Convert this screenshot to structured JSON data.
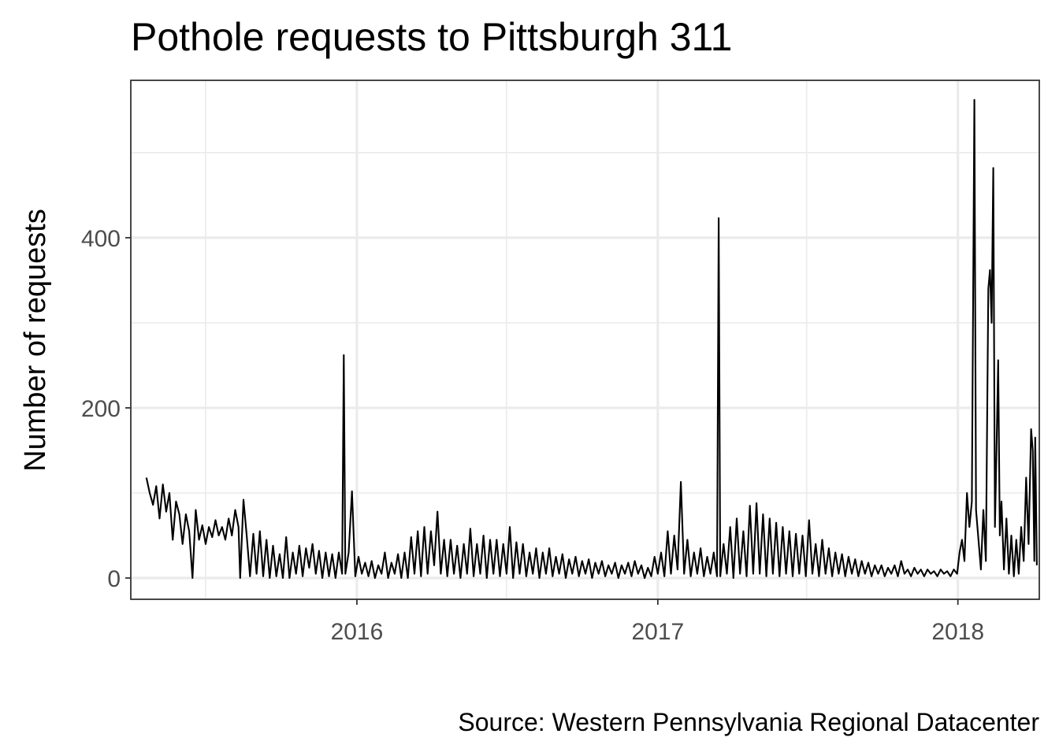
{
  "chart_data": {
    "type": "line",
    "title": "Pothole requests to Pittsburgh 311",
    "xlabel": "",
    "ylabel": "Number of requests",
    "caption": "Source: Western Pennsylvania Regional Datacenter",
    "x_axis": {
      "type": "date",
      "range": [
        "2015-04-01",
        "2018-04-10"
      ],
      "ticks": [
        "2016",
        "2017",
        "2018"
      ]
    },
    "y_axis": {
      "range": [
        -25,
        585
      ],
      "ticks": [
        0,
        200,
        400
      ]
    },
    "grid": true,
    "legend": "none",
    "series": [
      {
        "points": [
          [
            "2015-04-20",
            118
          ],
          [
            "2015-04-24",
            100
          ],
          [
            "2015-04-28",
            86
          ],
          [
            "2015-05-02",
            108
          ],
          [
            "2015-05-06",
            70
          ],
          [
            "2015-05-10",
            110
          ],
          [
            "2015-05-14",
            78
          ],
          [
            "2015-05-18",
            100
          ],
          [
            "2015-05-22",
            45
          ],
          [
            "2015-05-26",
            90
          ],
          [
            "2015-05-30",
            75
          ],
          [
            "2015-06-03",
            40
          ],
          [
            "2015-06-07",
            75
          ],
          [
            "2015-06-11",
            55
          ],
          [
            "2015-06-15",
            0
          ],
          [
            "2015-06-19",
            80
          ],
          [
            "2015-06-23",
            45
          ],
          [
            "2015-06-27",
            62
          ],
          [
            "2015-07-01",
            40
          ],
          [
            "2015-07-05",
            60
          ],
          [
            "2015-07-09",
            48
          ],
          [
            "2015-07-13",
            68
          ],
          [
            "2015-07-17",
            50
          ],
          [
            "2015-07-21",
            60
          ],
          [
            "2015-07-25",
            45
          ],
          [
            "2015-07-29",
            70
          ],
          [
            "2015-08-02",
            50
          ],
          [
            "2015-08-06",
            80
          ],
          [
            "2015-08-10",
            60
          ],
          [
            "2015-08-12",
            0
          ],
          [
            "2015-08-16",
            92
          ],
          [
            "2015-08-20",
            50
          ],
          [
            "2015-08-24",
            2
          ],
          [
            "2015-08-28",
            52
          ],
          [
            "2015-09-01",
            5
          ],
          [
            "2015-09-05",
            55
          ],
          [
            "2015-09-09",
            2
          ],
          [
            "2015-09-13",
            45
          ],
          [
            "2015-09-17",
            0
          ],
          [
            "2015-09-21",
            38
          ],
          [
            "2015-09-25",
            2
          ],
          [
            "2015-09-29",
            28
          ],
          [
            "2015-10-03",
            0
          ],
          [
            "2015-10-07",
            48
          ],
          [
            "2015-10-11",
            0
          ],
          [
            "2015-10-15",
            30
          ],
          [
            "2015-10-19",
            5
          ],
          [
            "2015-10-23",
            38
          ],
          [
            "2015-10-27",
            2
          ],
          [
            "2015-10-31",
            35
          ],
          [
            "2015-11-04",
            12
          ],
          [
            "2015-11-08",
            40
          ],
          [
            "2015-11-12",
            5
          ],
          [
            "2015-11-16",
            32
          ],
          [
            "2015-11-20",
            0
          ],
          [
            "2015-11-24",
            30
          ],
          [
            "2015-11-28",
            2
          ],
          [
            "2015-12-02",
            28
          ],
          [
            "2015-12-06",
            0
          ],
          [
            "2015-12-10",
            30
          ],
          [
            "2015-12-14",
            5
          ],
          [
            "2015-12-16",
            262
          ],
          [
            "2015-12-18",
            5
          ],
          [
            "2015-12-22",
            30
          ],
          [
            "2015-12-26",
            102
          ],
          [
            "2015-12-30",
            2
          ],
          [
            "2016-01-03",
            25
          ],
          [
            "2016-01-07",
            5
          ],
          [
            "2016-01-11",
            18
          ],
          [
            "2016-01-15",
            2
          ],
          [
            "2016-01-19",
            20
          ],
          [
            "2016-01-23",
            0
          ],
          [
            "2016-01-27",
            15
          ],
          [
            "2016-01-31",
            5
          ],
          [
            "2016-02-04",
            30
          ],
          [
            "2016-02-08",
            0
          ],
          [
            "2016-02-12",
            18
          ],
          [
            "2016-02-16",
            5
          ],
          [
            "2016-02-20",
            28
          ],
          [
            "2016-02-24",
            0
          ],
          [
            "2016-02-28",
            30
          ],
          [
            "2016-03-03",
            0
          ],
          [
            "2016-03-07",
            48
          ],
          [
            "2016-03-11",
            5
          ],
          [
            "2016-03-15",
            55
          ],
          [
            "2016-03-19",
            2
          ],
          [
            "2016-03-23",
            60
          ],
          [
            "2016-03-27",
            5
          ],
          [
            "2016-03-31",
            55
          ],
          [
            "2016-04-04",
            15
          ],
          [
            "2016-04-08",
            78
          ],
          [
            "2016-04-12",
            5
          ],
          [
            "2016-04-16",
            45
          ],
          [
            "2016-04-20",
            2
          ],
          [
            "2016-04-24",
            45
          ],
          [
            "2016-04-28",
            5
          ],
          [
            "2016-05-02",
            38
          ],
          [
            "2016-05-06",
            0
          ],
          [
            "2016-05-10",
            40
          ],
          [
            "2016-05-14",
            5
          ],
          [
            "2016-05-18",
            58
          ],
          [
            "2016-05-22",
            2
          ],
          [
            "2016-05-26",
            40
          ],
          [
            "2016-05-30",
            5
          ],
          [
            "2016-06-03",
            50
          ],
          [
            "2016-06-07",
            0
          ],
          [
            "2016-06-11",
            45
          ],
          [
            "2016-06-15",
            5
          ],
          [
            "2016-06-19",
            45
          ],
          [
            "2016-06-23",
            2
          ],
          [
            "2016-06-27",
            40
          ],
          [
            "2016-07-01",
            5
          ],
          [
            "2016-07-05",
            60
          ],
          [
            "2016-07-09",
            0
          ],
          [
            "2016-07-13",
            42
          ],
          [
            "2016-07-17",
            5
          ],
          [
            "2016-07-21",
            40
          ],
          [
            "2016-07-25",
            2
          ],
          [
            "2016-07-29",
            30
          ],
          [
            "2016-08-02",
            5
          ],
          [
            "2016-08-06",
            35
          ],
          [
            "2016-08-10",
            0
          ],
          [
            "2016-08-14",
            30
          ],
          [
            "2016-08-18",
            5
          ],
          [
            "2016-08-22",
            35
          ],
          [
            "2016-08-26",
            2
          ],
          [
            "2016-08-30",
            25
          ],
          [
            "2016-09-03",
            5
          ],
          [
            "2016-09-07",
            28
          ],
          [
            "2016-09-11",
            0
          ],
          [
            "2016-09-15",
            22
          ],
          [
            "2016-09-19",
            5
          ],
          [
            "2016-09-23",
            25
          ],
          [
            "2016-09-27",
            2
          ],
          [
            "2016-10-01",
            20
          ],
          [
            "2016-10-05",
            5
          ],
          [
            "2016-10-09",
            22
          ],
          [
            "2016-10-13",
            0
          ],
          [
            "2016-10-17",
            18
          ],
          [
            "2016-10-21",
            5
          ],
          [
            "2016-10-25",
            20
          ],
          [
            "2016-10-29",
            2
          ],
          [
            "2016-11-02",
            15
          ],
          [
            "2016-11-06",
            5
          ],
          [
            "2016-11-10",
            18
          ],
          [
            "2016-11-14",
            0
          ],
          [
            "2016-11-18",
            15
          ],
          [
            "2016-11-22",
            5
          ],
          [
            "2016-11-26",
            18
          ],
          [
            "2016-11-30",
            2
          ],
          [
            "2016-12-04",
            20
          ],
          [
            "2016-12-08",
            5
          ],
          [
            "2016-12-12",
            15
          ],
          [
            "2016-12-16",
            0
          ],
          [
            "2016-12-20",
            12
          ],
          [
            "2016-12-24",
            2
          ],
          [
            "2016-12-28",
            25
          ],
          [
            "2017-01-01",
            5
          ],
          [
            "2017-01-05",
            30
          ],
          [
            "2017-01-09",
            2
          ],
          [
            "2017-01-13",
            55
          ],
          [
            "2017-01-17",
            5
          ],
          [
            "2017-01-21",
            50
          ],
          [
            "2017-01-25",
            10
          ],
          [
            "2017-01-29",
            113
          ],
          [
            "2017-02-02",
            5
          ],
          [
            "2017-02-06",
            45
          ],
          [
            "2017-02-10",
            2
          ],
          [
            "2017-02-14",
            30
          ],
          [
            "2017-02-18",
            5
          ],
          [
            "2017-02-22",
            35
          ],
          [
            "2017-02-26",
            2
          ],
          [
            "2017-03-02",
            25
          ],
          [
            "2017-03-06",
            5
          ],
          [
            "2017-03-10",
            30
          ],
          [
            "2017-03-14",
            2
          ],
          [
            "2017-03-16",
            423
          ],
          [
            "2017-03-18",
            2
          ],
          [
            "2017-03-22",
            40
          ],
          [
            "2017-03-26",
            5
          ],
          [
            "2017-03-30",
            60
          ],
          [
            "2017-04-03",
            0
          ],
          [
            "2017-04-07",
            70
          ],
          [
            "2017-04-11",
            5
          ],
          [
            "2017-04-15",
            55
          ],
          [
            "2017-04-19",
            2
          ],
          [
            "2017-04-23",
            85
          ],
          [
            "2017-04-27",
            5
          ],
          [
            "2017-05-01",
            88
          ],
          [
            "2017-05-05",
            5
          ],
          [
            "2017-05-09",
            75
          ],
          [
            "2017-05-13",
            2
          ],
          [
            "2017-05-17",
            70
          ],
          [
            "2017-05-21",
            5
          ],
          [
            "2017-05-25",
            65
          ],
          [
            "2017-05-29",
            2
          ],
          [
            "2017-06-02",
            60
          ],
          [
            "2017-06-06",
            5
          ],
          [
            "2017-06-10",
            55
          ],
          [
            "2017-06-14",
            2
          ],
          [
            "2017-06-18",
            52
          ],
          [
            "2017-06-22",
            5
          ],
          [
            "2017-06-26",
            50
          ],
          [
            "2017-06-30",
            2
          ],
          [
            "2017-07-04",
            68
          ],
          [
            "2017-07-08",
            5
          ],
          [
            "2017-07-12",
            40
          ],
          [
            "2017-07-16",
            2
          ],
          [
            "2017-07-20",
            45
          ],
          [
            "2017-07-24",
            5
          ],
          [
            "2017-07-28",
            35
          ],
          [
            "2017-08-01",
            2
          ],
          [
            "2017-08-05",
            30
          ],
          [
            "2017-08-09",
            5
          ],
          [
            "2017-08-13",
            28
          ],
          [
            "2017-08-17",
            2
          ],
          [
            "2017-08-21",
            25
          ],
          [
            "2017-08-25",
            5
          ],
          [
            "2017-08-29",
            22
          ],
          [
            "2017-09-02",
            2
          ],
          [
            "2017-09-06",
            20
          ],
          [
            "2017-09-10",
            5
          ],
          [
            "2017-09-14",
            18
          ],
          [
            "2017-09-18",
            2
          ],
          [
            "2017-09-22",
            15
          ],
          [
            "2017-09-26",
            5
          ],
          [
            "2017-09-30",
            15
          ],
          [
            "2017-10-04",
            2
          ],
          [
            "2017-10-08",
            12
          ],
          [
            "2017-10-12",
            5
          ],
          [
            "2017-10-16",
            15
          ],
          [
            "2017-10-20",
            2
          ],
          [
            "2017-10-24",
            20
          ],
          [
            "2017-10-28",
            5
          ],
          [
            "2017-11-01",
            10
          ],
          [
            "2017-11-05",
            2
          ],
          [
            "2017-11-09",
            12
          ],
          [
            "2017-11-13",
            5
          ],
          [
            "2017-11-17",
            10
          ],
          [
            "2017-11-21",
            2
          ],
          [
            "2017-11-25",
            10
          ],
          [
            "2017-11-29",
            5
          ],
          [
            "2017-12-03",
            8
          ],
          [
            "2017-12-07",
            2
          ],
          [
            "2017-12-11",
            10
          ],
          [
            "2017-12-15",
            5
          ],
          [
            "2017-12-19",
            8
          ],
          [
            "2017-12-23",
            2
          ],
          [
            "2017-12-27",
            10
          ],
          [
            "2017-12-31",
            5
          ],
          [
            "2018-01-03",
            30
          ],
          [
            "2018-01-06",
            45
          ],
          [
            "2018-01-09",
            20
          ],
          [
            "2018-01-12",
            100
          ],
          [
            "2018-01-15",
            60
          ],
          [
            "2018-01-18",
            90
          ],
          [
            "2018-01-21",
            562
          ],
          [
            "2018-01-23",
            80
          ],
          [
            "2018-01-26",
            45
          ],
          [
            "2018-01-29",
            10
          ],
          [
            "2018-02-01",
            80
          ],
          [
            "2018-02-04",
            20
          ],
          [
            "2018-02-07",
            340
          ],
          [
            "2018-02-09",
            362
          ],
          [
            "2018-02-11",
            300
          ],
          [
            "2018-02-13",
            482
          ],
          [
            "2018-02-15",
            60
          ],
          [
            "2018-02-17",
            150
          ],
          [
            "2018-02-19",
            256
          ],
          [
            "2018-02-21",
            50
          ],
          [
            "2018-02-23",
            90
          ],
          [
            "2018-02-26",
            10
          ],
          [
            "2018-03-01",
            70
          ],
          [
            "2018-03-04",
            5
          ],
          [
            "2018-03-07",
            50
          ],
          [
            "2018-03-10",
            2
          ],
          [
            "2018-03-13",
            45
          ],
          [
            "2018-03-16",
            5
          ],
          [
            "2018-03-19",
            60
          ],
          [
            "2018-03-22",
            20
          ],
          [
            "2018-03-25",
            118
          ],
          [
            "2018-03-28",
            40
          ],
          [
            "2018-03-31",
            175
          ],
          [
            "2018-04-02",
            150
          ],
          [
            "2018-04-04",
            20
          ],
          [
            "2018-04-05",
            165
          ],
          [
            "2018-04-07",
            15
          ]
        ]
      }
    ]
  }
}
